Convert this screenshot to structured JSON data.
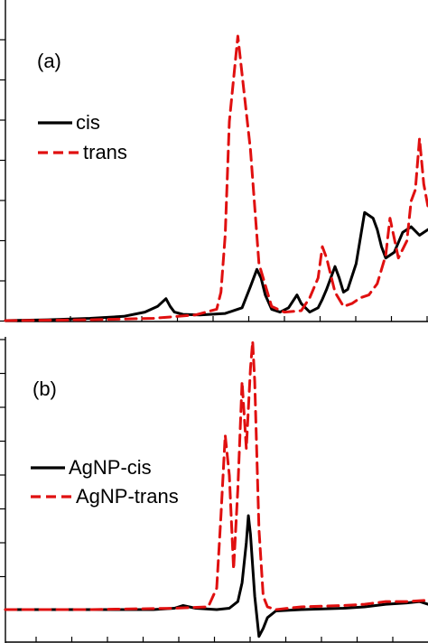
{
  "colors": {
    "cis": "#000000",
    "trans": "#e01010",
    "axis": "#000000"
  },
  "chart_data": [
    {
      "type": "line",
      "panel_label": "(a)",
      "xlabel": "",
      "ylabel": "",
      "xlim": [
        0,
        1
      ],
      "ylim": [
        0,
        1
      ],
      "legend_position": "middle-left",
      "series": [
        {
          "name": "cis",
          "style": "solid",
          "color": "#000000",
          "x": [
            0.0,
            0.1,
            0.2,
            0.28,
            0.33,
            0.36,
            0.38,
            0.39,
            0.4,
            0.42,
            0.46,
            0.52,
            0.56,
            0.58,
            0.595,
            0.605,
            0.615,
            0.63,
            0.65,
            0.67,
            0.69,
            0.7,
            0.72,
            0.74,
            0.75,
            0.76,
            0.78,
            0.79,
            0.8,
            0.81,
            0.83,
            0.85,
            0.87,
            0.88,
            0.89,
            0.9,
            0.92,
            0.94,
            0.96,
            0.98,
            1.0
          ],
          "y": [
            0.0,
            0.003,
            0.008,
            0.015,
            0.03,
            0.05,
            0.077,
            0.05,
            0.03,
            0.022,
            0.02,
            0.025,
            0.045,
            0.12,
            0.18,
            0.15,
            0.09,
            0.04,
            0.03,
            0.045,
            0.09,
            0.06,
            0.03,
            0.045,
            0.075,
            0.11,
            0.19,
            0.15,
            0.1,
            0.11,
            0.2,
            0.38,
            0.36,
            0.32,
            0.26,
            0.22,
            0.24,
            0.31,
            0.33,
            0.3,
            0.32
          ]
        },
        {
          "name": "trans",
          "style": "dashed",
          "color": "#e01010",
          "x": [
            0.0,
            0.2,
            0.35,
            0.45,
            0.5,
            0.51,
            0.52,
            0.53,
            0.55,
            0.58,
            0.6,
            0.63,
            0.66,
            0.7,
            0.72,
            0.74,
            0.75,
            0.76,
            0.78,
            0.8,
            0.82,
            0.84,
            0.86,
            0.88,
            0.9,
            0.91,
            0.93,
            0.95,
            0.96,
            0.97,
            0.98,
            0.99,
            1.0
          ],
          "y": [
            0.0,
            0.003,
            0.008,
            0.02,
            0.04,
            0.1,
            0.3,
            0.7,
            1.0,
            0.6,
            0.2,
            0.05,
            0.03,
            0.035,
            0.08,
            0.15,
            0.26,
            0.22,
            0.1,
            0.05,
            0.06,
            0.08,
            0.09,
            0.13,
            0.23,
            0.36,
            0.22,
            0.28,
            0.42,
            0.46,
            0.64,
            0.48,
            0.4
          ]
        }
      ]
    },
    {
      "type": "line",
      "panel_label": "(b)",
      "xlabel": "",
      "ylabel": "",
      "xlim": [
        0,
        1
      ],
      "ylim": [
        -0.1,
        1
      ],
      "legend_position": "middle-left",
      "series": [
        {
          "name": "AgNP-cis",
          "style": "solid",
          "color": "#000000",
          "x": [
            0.0,
            0.2,
            0.35,
            0.4,
            0.42,
            0.45,
            0.5,
            0.53,
            0.55,
            0.56,
            0.57,
            0.575,
            0.58,
            0.59,
            0.6,
            0.61,
            0.62,
            0.64,
            0.7,
            0.8,
            0.85,
            0.9,
            0.95,
            0.98,
            1.0
          ],
          "y": [
            0.0,
            0.0,
            0.0,
            0.005,
            0.015,
            0.005,
            0.0,
            0.005,
            0.03,
            0.1,
            0.25,
            0.35,
            0.28,
            0.05,
            -0.1,
            -0.07,
            -0.03,
            -0.005,
            0.0,
            0.005,
            0.01,
            0.02,
            0.025,
            0.03,
            0.02
          ]
        },
        {
          "name": "AgNP-trans",
          "style": "dashed",
          "color": "#e01010",
          "x": [
            0.0,
            0.2,
            0.4,
            0.48,
            0.5,
            0.51,
            0.52,
            0.53,
            0.54,
            0.55,
            0.56,
            0.57,
            0.58,
            0.585,
            0.59,
            0.6,
            0.61,
            0.62,
            0.64,
            0.7,
            0.8,
            0.85,
            0.9,
            0.95,
            1.0
          ],
          "y": [
            0.0,
            0.0,
            0.005,
            0.01,
            0.08,
            0.35,
            0.65,
            0.5,
            0.15,
            0.45,
            0.85,
            0.6,
            0.9,
            1.0,
            0.85,
            0.3,
            0.05,
            0.01,
            0.0,
            0.01,
            0.015,
            0.02,
            0.03,
            0.03,
            0.035
          ]
        }
      ]
    }
  ]
}
